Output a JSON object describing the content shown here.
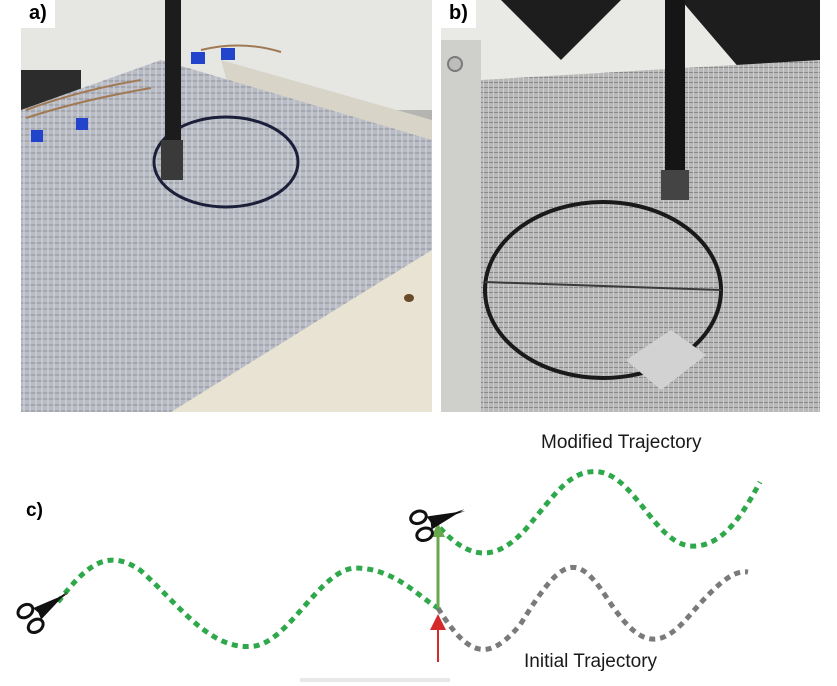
{
  "panels": {
    "a": {
      "label": "a)"
    },
    "b": {
      "label": "b)"
    },
    "c": {
      "label": "c)"
    }
  },
  "diagram": {
    "modified_label": "Modified Trajectory",
    "initial_label": "Initial Trajectory",
    "colors": {
      "modified_path": "#2ea84a",
      "initial_path": "#7a7a7a",
      "shift_arrow": "#6aa84f",
      "pierce_arrow": "#d42a2a"
    }
  }
}
